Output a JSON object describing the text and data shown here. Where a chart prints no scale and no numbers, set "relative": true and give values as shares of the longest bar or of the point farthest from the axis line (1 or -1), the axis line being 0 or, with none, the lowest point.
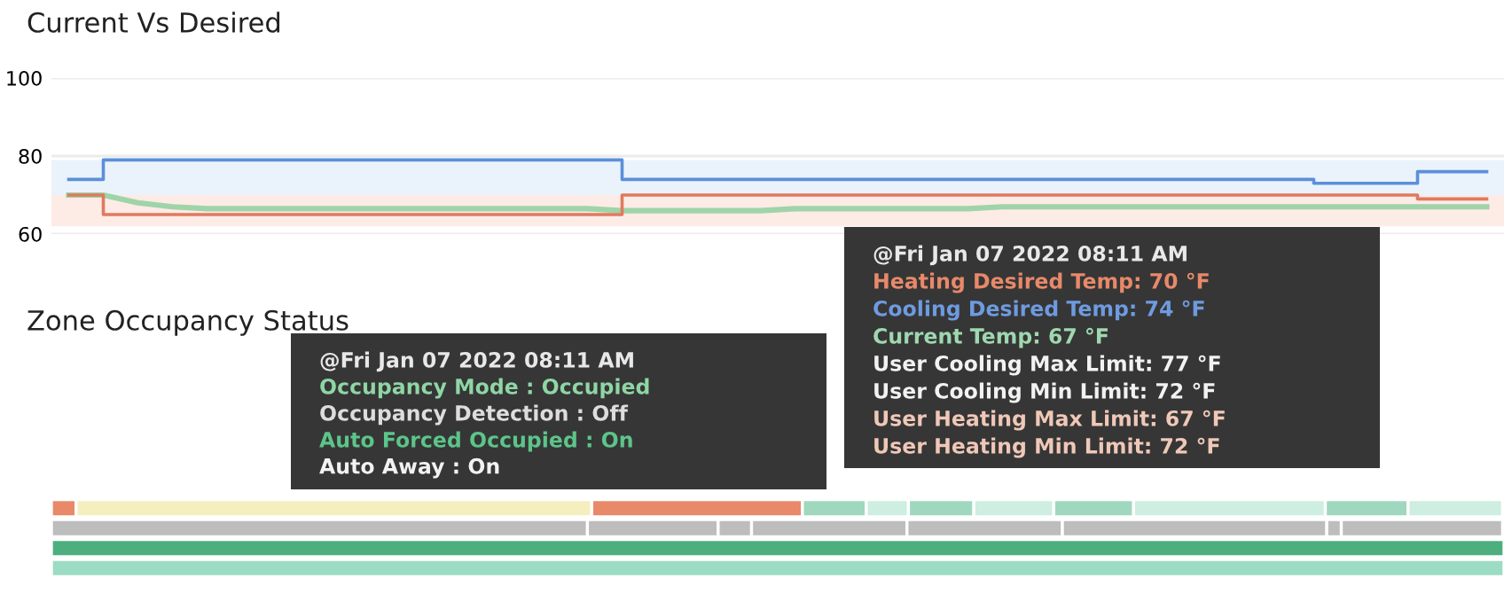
{
  "chart_data": [
    {
      "type": "step",
      "title": "Current Vs Desired",
      "categories": [
        null,
        null,
        null,
        null,
        null,
        null,
        null,
        null,
        null,
        null,
        null,
        null,
        null,
        null,
        null,
        null,
        null,
        null,
        null,
        null,
        null,
        null,
        null,
        null,
        null,
        null,
        null,
        null,
        null,
        null,
        null,
        null,
        null,
        null,
        null,
        null,
        null,
        null,
        null,
        null,
        null,
        null
      ],
      "series": [
        {
          "color": "#5b8fd9",
          "values": [
            74,
            79,
            79,
            79,
            79,
            79,
            79,
            79,
            79,
            79,
            79,
            79,
            79,
            79,
            79,
            79,
            74,
            74,
            74,
            74,
            74,
            74,
            74,
            74,
            74,
            74,
            74,
            74,
            74,
            74,
            74,
            74,
            74,
            74,
            74,
            74,
            73,
            73,
            73,
            76,
            76,
            76
          ]
        },
        {
          "color": "#e07a5f",
          "values": [
            70,
            65,
            65,
            65,
            65,
            65,
            65,
            65,
            65,
            65,
            65,
            65,
            65,
            65,
            65,
            65,
            70,
            70,
            70,
            70,
            70,
            70,
            70,
            70,
            70,
            70,
            70,
            70,
            70,
            70,
            70,
            70,
            70,
            70,
            70,
            70,
            70,
            70,
            70,
            69,
            69,
            69
          ]
        },
        {
          "type": "line",
          "color": "#9fd4a8",
          "values": [
            70,
            70,
            68,
            67,
            66.5,
            66.5,
            66.5,
            66.5,
            66.5,
            66.5,
            66.5,
            66.5,
            66.5,
            66.5,
            66.5,
            66.5,
            66,
            66,
            66,
            66,
            66,
            66.5,
            66.5,
            66.5,
            66.5,
            66.5,
            66.5,
            67,
            67,
            67,
            67,
            67,
            67,
            67,
            67,
            67,
            67,
            67,
            67,
            67,
            67,
            67
          ]
        }
      ],
      "bands": [
        {
          "axis": "y",
          "from": 70,
          "to": 79,
          "color": "#eaf3fc"
        },
        {
          "axis": "y",
          "from": 62,
          "to": 70,
          "color": "#fdebe6"
        }
      ],
      "ylim": [
        60,
        100
      ],
      "yticks": [
        60,
        80,
        100
      ],
      "grid": "y",
      "tick_labels": "y",
      "annotations": [
        "@Fri Jan 07 2022 08:11 AM",
        "Heating Desired Temp: 70 °F",
        "Cooling Desired Temp: 74 °F",
        "Current Temp: 67 °F",
        "User Cooling Max Limit: 77 °F",
        "User Cooling Min Limit: 72 °F",
        "User Heating Max Limit: 67 °F",
        "User Heating Min Limit: 72 °F"
      ]
    },
    {
      "type": "bar",
      "title": "Zone Occupancy Status",
      "orientation": "horizontal",
      "stacked": true,
      "relative": true,
      "categories": [
        null,
        null,
        null,
        null
      ],
      "series": [
        {
          "colors": [
            "#e8896a",
            "#bdbdbd",
            "#4caf7d",
            "#9ddcc4"
          ],
          "values": [
            0.017,
            0.369,
            1,
            1
          ]
        },
        {
          "colors": [
            "#f5efc0",
            "#bdbdbd",
            null,
            null
          ],
          "values": [
            0.355,
            0.09,
            null,
            null
          ]
        },
        {
          "colors": [
            "#e8896a",
            "#bdbdbd",
            null,
            null
          ],
          "values": [
            0.145,
            0.023,
            null,
            null
          ]
        },
        {
          "colors": [
            "#9fd8bf",
            "#bdbdbd",
            null,
            null
          ],
          "values": [
            0.044,
            0.107,
            null,
            null
          ]
        },
        {
          "colors": [
            "#cdeee0",
            "#bdbdbd",
            null,
            null
          ],
          "values": [
            0.029,
            0.107,
            null,
            null
          ]
        },
        {
          "colors": [
            "#9fd8bf",
            "#bdbdbd",
            null,
            null
          ],
          "values": [
            0.045,
            0.182,
            null,
            null
          ]
        },
        {
          "colors": [
            "#cdeee0",
            "#bdbdbd",
            null,
            null
          ],
          "values": [
            0.055,
            0.01,
            null,
            null
          ]
        },
        {
          "colors": [
            "#9fd8bf",
            "#bdbdbd",
            null,
            null
          ],
          "values": [
            0.055,
            0.111,
            null,
            null
          ]
        },
        {
          "colors": [
            "#cdeee0",
            null,
            null,
            null
          ],
          "values": [
            0.132,
            null,
            null,
            null
          ]
        },
        {
          "colors": [
            "#9fd8bf",
            null,
            null,
            null
          ],
          "values": [
            0.057,
            null,
            null,
            null
          ]
        },
        {
          "colors": [
            "#cdeee0",
            null,
            null,
            null
          ],
          "values": [
            0.065,
            null,
            null,
            null
          ]
        }
      ],
      "annotations": [
        "@Fri Jan 07 2022 08:11 AM",
        "Occupancy Mode : Occupied",
        "Occupancy Detection : Off",
        "Auto Forced Occupied : On",
        "Auto Away : On"
      ]
    }
  ]
}
